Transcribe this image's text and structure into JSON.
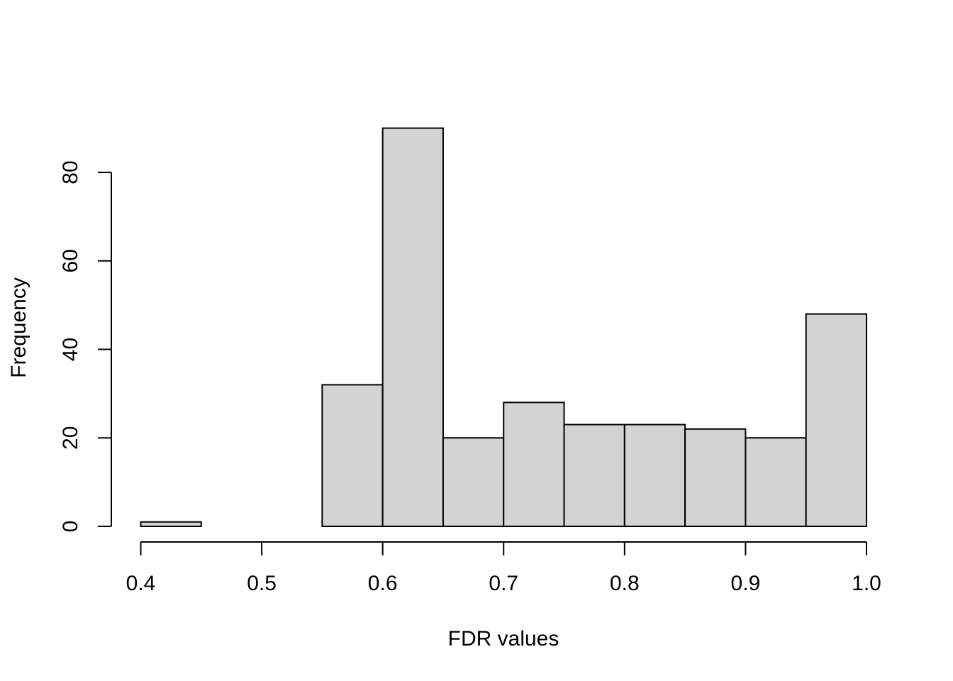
{
  "chart_data": {
    "type": "bar",
    "title": "",
    "xlabel": "FDR values",
    "ylabel": "Frequency",
    "bin_edges": [
      0.4,
      0.45,
      0.5,
      0.55,
      0.6,
      0.65,
      0.7,
      0.75,
      0.8,
      0.85,
      0.9,
      0.95,
      1.0
    ],
    "values": [
      1,
      0,
      0,
      32,
      90,
      20,
      28,
      23,
      23,
      22,
      20,
      48
    ],
    "xlim": [
      0.4,
      1.0
    ],
    "ylim": [
      0,
      90
    ],
    "x_ticks": [
      "0.4",
      "0.5",
      "0.6",
      "0.7",
      "0.8",
      "0.9",
      "1.0"
    ],
    "y_ticks": [
      "0",
      "20",
      "40",
      "60",
      "80"
    ],
    "bar_color": "#d3d3d3",
    "grid": false,
    "legend": "none"
  }
}
